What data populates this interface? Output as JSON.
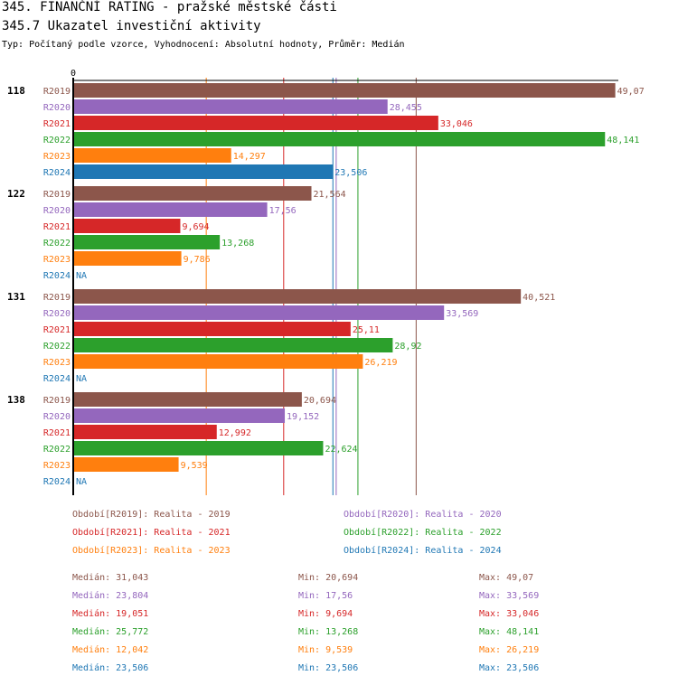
{
  "header": {
    "title": "345. FINANČNÍ RATING - pražské městské části",
    "subtitle": "345.7 Ukazatel investiční aktivity",
    "meta": "Typ: Počítaný podle vzorce, Vyhodnocení: Absolutní hodnoty, Průměr: Medián"
  },
  "colors": {
    "R2019": "#8c564b",
    "R2020": "#9467bd",
    "R2021": "#d62728",
    "R2022": "#2ca02c",
    "R2023": "#ff7f0e",
    "R2024": "#1f77b4"
  },
  "chart_data": {
    "type": "bar",
    "orientation": "horizontal",
    "axis_zero_label": "0",
    "xlim": [
      0,
      50
    ],
    "series_names": [
      "R2019",
      "R2020",
      "R2021",
      "R2022",
      "R2023",
      "R2024"
    ],
    "groups": [
      {
        "name": "118",
        "values": [
          49.07,
          28.455,
          33.046,
          48.141,
          14.297,
          23.506
        ],
        "labels": [
          "49,07",
          "28,455",
          "33,046",
          "48,141",
          "14,297",
          "23,506"
        ]
      },
      {
        "name": "122",
        "values": [
          21.564,
          17.56,
          9.694,
          13.268,
          9.786,
          null
        ],
        "labels": [
          "21,564",
          "17,56",
          "9,694",
          "13,268",
          "9,786",
          "NA"
        ]
      },
      {
        "name": "131",
        "values": [
          40.521,
          33.569,
          25.11,
          28.92,
          26.219,
          null
        ],
        "labels": [
          "40,521",
          "33,569",
          "25,11",
          "28,92",
          "26,219",
          "NA"
        ]
      },
      {
        "name": "138",
        "values": [
          20.694,
          19.152,
          12.992,
          22.624,
          9.539,
          null
        ],
        "labels": [
          "20,694",
          "19,152",
          "12,992",
          "22,624",
          "9,539",
          "NA"
        ]
      }
    ],
    "median_lines": [
      {
        "series": "R2019",
        "value": 31.043
      },
      {
        "series": "R2020",
        "value": 23.804
      },
      {
        "series": "R2021",
        "value": 19.051
      },
      {
        "series": "R2022",
        "value": 25.772
      },
      {
        "series": "R2023",
        "value": 12.042
      },
      {
        "series": "R2024",
        "value": 23.506
      }
    ]
  },
  "legend": [
    {
      "series": "R2019",
      "text": "Období[R2019]: Realita - 2019"
    },
    {
      "series": "R2020",
      "text": "Období[R2020]: Realita - 2020"
    },
    {
      "series": "R2021",
      "text": "Období[R2021]: Realita - 2021"
    },
    {
      "series": "R2022",
      "text": "Období[R2022]: Realita - 2022"
    },
    {
      "series": "R2023",
      "text": "Období[R2023]: Realita - 2023"
    },
    {
      "series": "R2024",
      "text": "Období[R2024]: Realita - 2024"
    }
  ],
  "stats": [
    {
      "series": "R2019",
      "median": "Medián: 31,043",
      "min": "Min: 20,694",
      "max": "Max: 49,07"
    },
    {
      "series": "R2020",
      "median": "Medián: 23,804",
      "min": "Min: 17,56",
      "max": "Max: 33,569"
    },
    {
      "series": "R2021",
      "median": "Medián: 19,051",
      "min": "Min: 9,694",
      "max": "Max: 33,046"
    },
    {
      "series": "R2022",
      "median": "Medián: 25,772",
      "min": "Min: 13,268",
      "max": "Max: 48,141"
    },
    {
      "series": "R2023",
      "median": "Medián: 12,042",
      "min": "Min: 9,539",
      "max": "Max: 26,219"
    },
    {
      "series": "R2024",
      "median": "Medián: 23,506",
      "min": "Min: 23,506",
      "max": "Max: 23,506"
    }
  ]
}
